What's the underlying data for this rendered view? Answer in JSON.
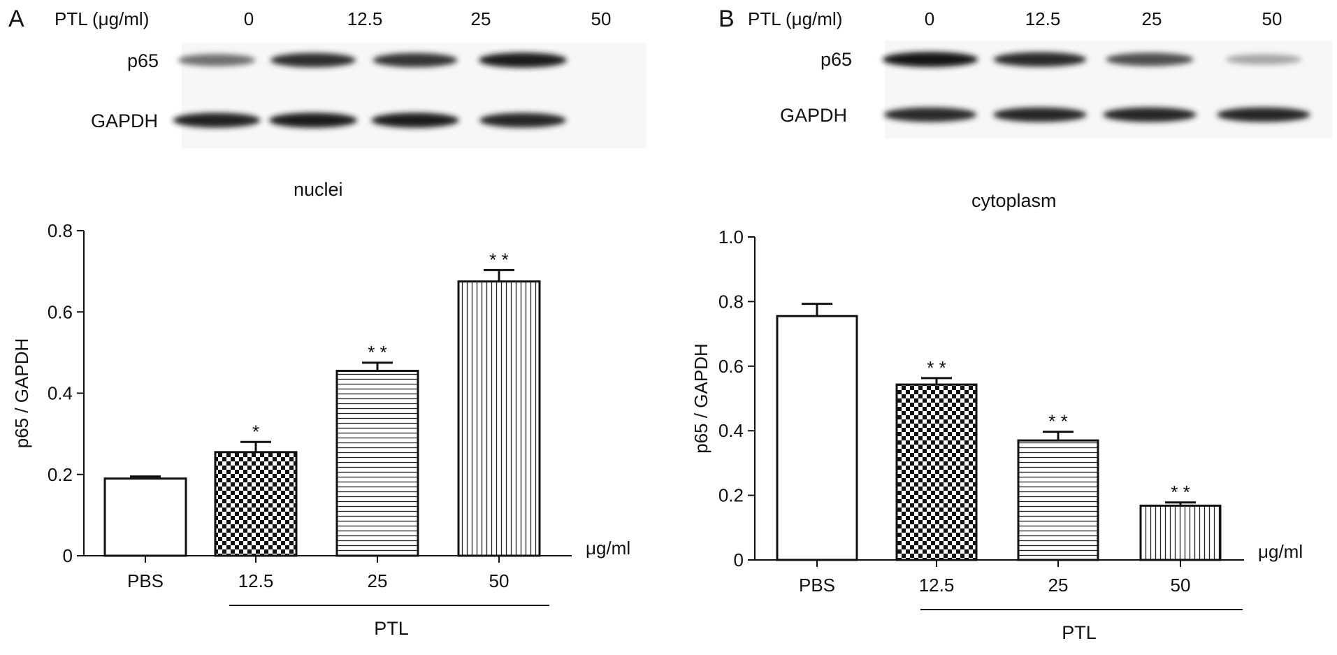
{
  "panels": [
    {
      "id": "A",
      "letter": "A",
      "header_label": "PTL (μg/ml)",
      "lane_labels": [
        "0",
        "12.5",
        "25",
        "50"
      ],
      "blot_rows": [
        {
          "label": "p65",
          "intensity": [
            0.55,
            0.85,
            0.82,
            0.95
          ]
        },
        {
          "label": "GAPDH",
          "intensity": [
            0.92,
            0.95,
            0.93,
            0.9
          ]
        }
      ],
      "region_label": "nuclei",
      "chart_data": {
        "type": "bar",
        "categories": [
          "PBS",
          "12.5",
          "25",
          "50"
        ],
        "values": [
          0.19,
          0.255,
          0.455,
          0.675
        ],
        "errors": [
          0.005,
          0.025,
          0.02,
          0.028
        ],
        "significance": [
          "",
          "*",
          "* *",
          "* *"
        ],
        "patterns": [
          "none",
          "checker",
          "horizontal",
          "vertical"
        ],
        "ylabel": "p65 / GAPDH",
        "xunit": "μg/ml",
        "group_label": "PTL",
        "ylim": [
          0,
          0.8
        ],
        "yticks": [
          "0",
          "0.2",
          "0.4",
          "0.6",
          "0.8"
        ],
        "ytick_values": [
          0,
          0.2,
          0.4,
          0.6,
          0.8
        ]
      }
    },
    {
      "id": "B",
      "letter": "B",
      "header_label": "PTL (μg/ml)",
      "lane_labels": [
        "0",
        "12.5",
        "25",
        "50"
      ],
      "blot_rows": [
        {
          "label": "p65",
          "intensity": [
            0.97,
            0.88,
            0.7,
            0.3
          ]
        },
        {
          "label": "GAPDH",
          "intensity": [
            0.88,
            0.9,
            0.9,
            0.9
          ]
        }
      ],
      "region_label": "cytoplasm",
      "chart_data": {
        "type": "bar",
        "categories": [
          "PBS",
          "12.5",
          "25",
          "50"
        ],
        "values": [
          0.755,
          0.543,
          0.37,
          0.168
        ],
        "errors": [
          0.038,
          0.02,
          0.027,
          0.01
        ],
        "significance": [
          "",
          "* *",
          "* *",
          "* *"
        ],
        "patterns": [
          "none",
          "checker",
          "horizontal",
          "vertical"
        ],
        "ylabel": "p65 / GAPDH",
        "xunit": "μg/ml",
        "group_label": "PTL",
        "ylim": [
          0,
          1.0
        ],
        "yticks": [
          "0",
          "0.2",
          "0.4",
          "0.6",
          "0.8",
          "1.0"
        ],
        "ytick_values": [
          0,
          0.2,
          0.4,
          0.6,
          0.8,
          1.0
        ]
      }
    }
  ]
}
